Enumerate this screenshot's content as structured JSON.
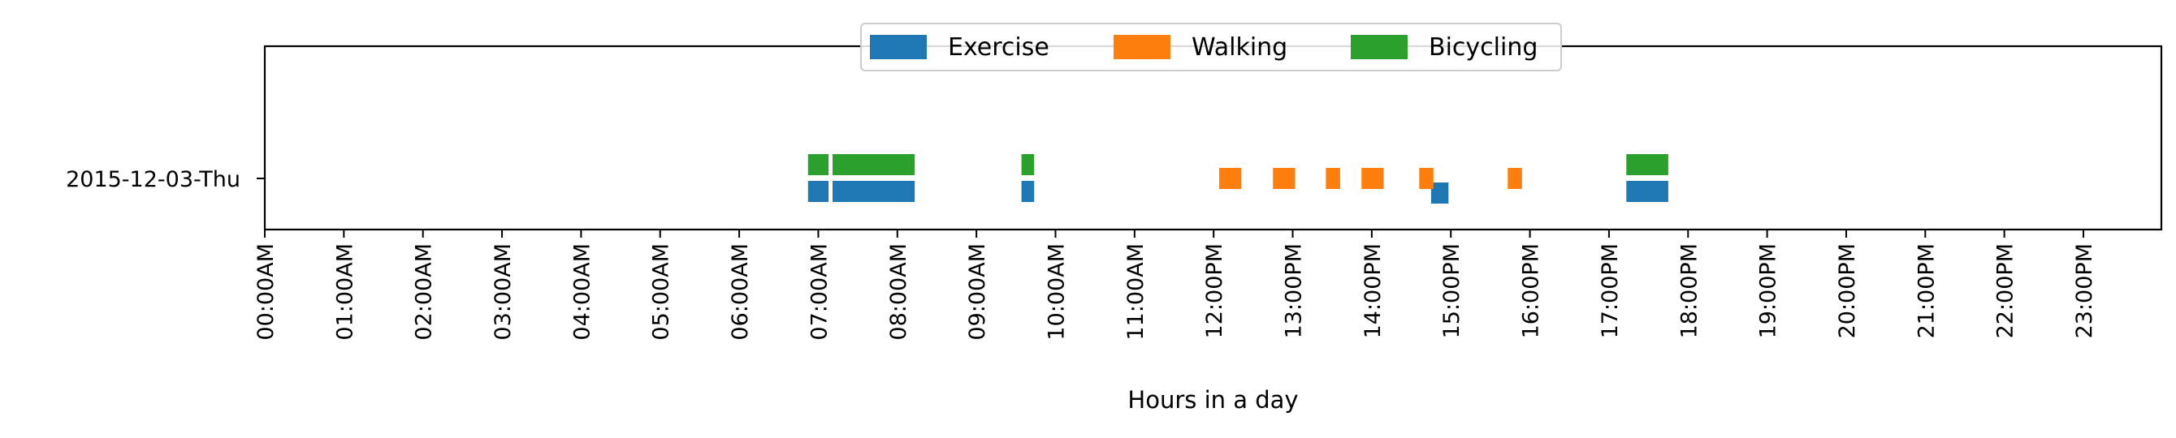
{
  "chart_data": {
    "type": "bar",
    "subtype": "timeline",
    "title": "",
    "xlabel": "Hours in a day",
    "ylabel": "",
    "xlim": [
      0,
      24
    ],
    "x_tick_labels": [
      "00:00AM",
      "01:00AM",
      "02:00AM",
      "03:00AM",
      "04:00AM",
      "05:00AM",
      "06:00AM",
      "07:00AM",
      "08:00AM",
      "09:00AM",
      "10:00AM",
      "11:00AM",
      "12:00PM",
      "13:00PM",
      "14:00PM",
      "15:00PM",
      "16:00PM",
      "17:00PM",
      "18:00PM",
      "19:00PM",
      "20:00PM",
      "21:00PM",
      "22:00PM",
      "23:00PM"
    ],
    "categories": [
      "2015-12-03-Thu"
    ],
    "grid": false,
    "legend_position": "top-center",
    "series": [
      {
        "name": "Exercise",
        "color": "#1f77b4",
        "segments": [
          {
            "start": 6.87,
            "end": 7.13
          },
          {
            "start": 7.18,
            "end": 8.22
          },
          {
            "start": 9.57,
            "end": 9.73
          },
          {
            "start": 14.75,
            "end": 14.97
          },
          {
            "start": 17.22,
            "end": 17.75
          }
        ]
      },
      {
        "name": "Walking",
        "color": "#ff7f0e",
        "segments": [
          {
            "start": 12.07,
            "end": 12.35
          },
          {
            "start": 12.75,
            "end": 13.03
          },
          {
            "start": 13.42,
            "end": 13.6
          },
          {
            "start": 13.87,
            "end": 14.15
          },
          {
            "start": 14.6,
            "end": 14.78
          },
          {
            "start": 15.72,
            "end": 15.9
          }
        ]
      },
      {
        "name": "Bicycling",
        "color": "#2ca02c",
        "segments": [
          {
            "start": 6.87,
            "end": 7.13
          },
          {
            "start": 7.18,
            "end": 8.22
          },
          {
            "start": 9.57,
            "end": 9.73
          },
          {
            "start": 17.22,
            "end": 17.75
          }
        ]
      }
    ]
  }
}
